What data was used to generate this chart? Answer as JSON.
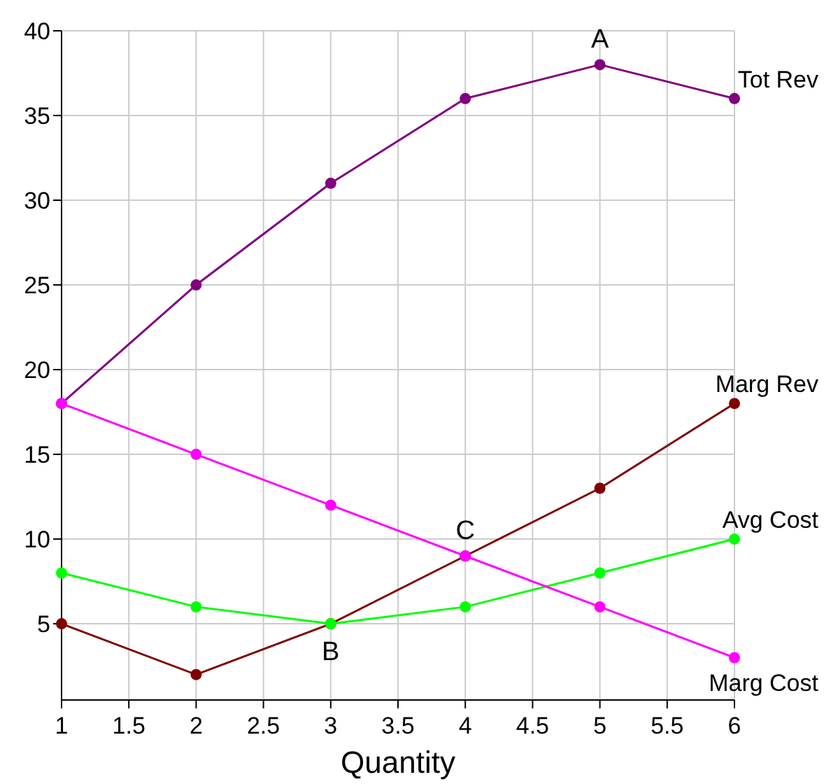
{
  "chart_data": {
    "type": "line",
    "xlabel": "Quantity",
    "x": [
      1,
      2,
      3,
      4,
      5,
      6
    ],
    "xlim": [
      1,
      6
    ],
    "xticks": [
      1,
      1.5,
      2,
      2.5,
      3,
      3.5,
      4,
      4.5,
      5,
      5.5,
      6
    ],
    "ylim": [
      0.5,
      40
    ],
    "yticks": [
      5,
      10,
      15,
      20,
      25,
      30,
      35,
      40
    ],
    "grid": true,
    "marker": "circle",
    "line_style": "solid",
    "series": [
      {
        "name": "Tot Rev",
        "color": "#800080",
        "values": [
          18,
          25,
          31,
          36,
          38,
          36
        ]
      },
      {
        "name": "Marg Rev",
        "color": "#800000",
        "values": [
          5,
          2,
          5,
          9,
          13,
          18
        ]
      },
      {
        "name": "Avg Cost",
        "color": "#00ff00",
        "values": [
          8,
          6,
          5,
          6,
          8,
          10
        ]
      },
      {
        "name": "Marg Cost",
        "color": "#ff00ff",
        "values": [
          18,
          15,
          12,
          9,
          6,
          3
        ]
      }
    ],
    "annotations": [
      {
        "text": "A",
        "x": 5,
        "y": 38
      },
      {
        "text": "B",
        "x": 3,
        "y": 5
      },
      {
        "text": "C",
        "x": 4,
        "y": 9
      }
    ]
  }
}
